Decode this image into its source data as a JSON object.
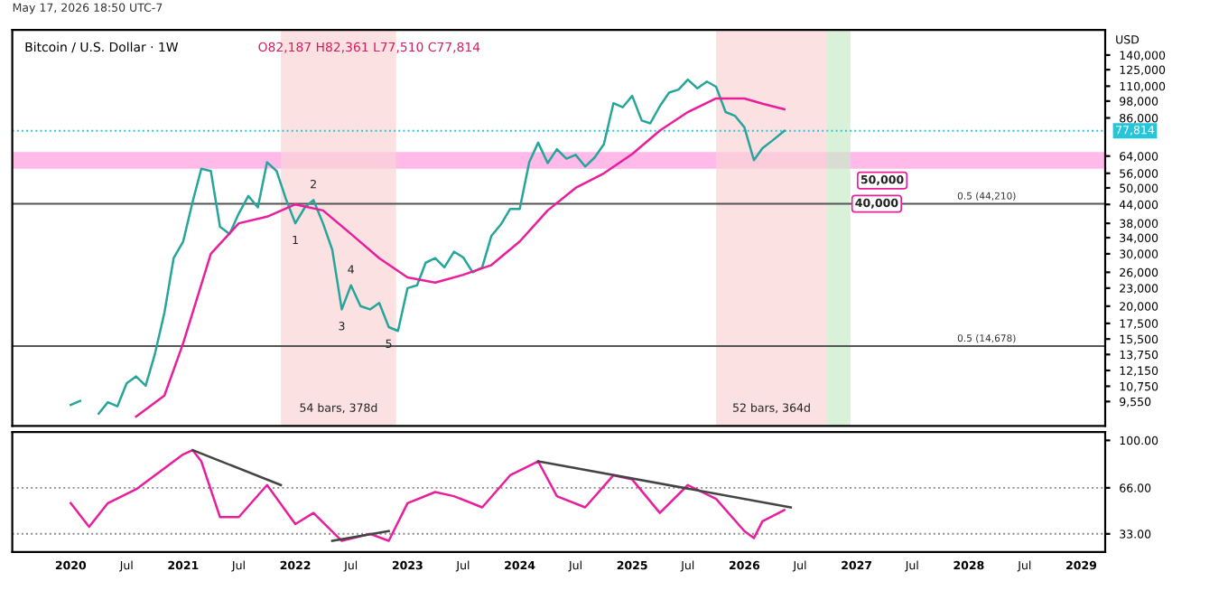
{
  "chart_data": [
    {
      "type": "line",
      "title": "Bitcoin / U.S. Dollar · 1W",
      "subtitle": "O82,187 H82,361 L77,510 C77,814",
      "log": "y",
      "tick_labels": "y",
      "marker": "none",
      "line_style": "solid",
      "ylabel": "USD",
      "xlim": [
        "2019-06-25",
        "2029-03-20"
      ],
      "ylim": [
        7900,
        170000
      ],
      "yticks": [
        {
          "value": 140000,
          "label": "140,000"
        },
        {
          "value": 125000,
          "label": "125,000"
        },
        {
          "value": 110000,
          "label": "110,000"
        },
        {
          "value": 98000,
          "label": "98,000"
        },
        {
          "value": 86000,
          "label": "86,000"
        },
        {
          "value": 64000,
          "label": "64,000"
        },
        {
          "value": 56000,
          "label": "56,000"
        },
        {
          "value": 50000,
          "label": "50,000"
        },
        {
          "value": 44000,
          "label": "44,000"
        },
        {
          "value": 38000,
          "label": "38,000"
        },
        {
          "value": 34000,
          "label": "34,000"
        },
        {
          "value": 30000,
          "label": "30,000"
        },
        {
          "value": 26000,
          "label": "26,000"
        },
        {
          "value": 23000,
          "label": "23,000"
        },
        {
          "value": 20000,
          "label": "20,000"
        },
        {
          "value": 17500,
          "label": "17,500"
        },
        {
          "value": 15500,
          "label": "15,500"
        },
        {
          "value": 13750,
          "label": "13,750"
        },
        {
          "value": 12150,
          "label": "12,150"
        },
        {
          "value": 10750,
          "label": "10,750"
        },
        {
          "value": 9550,
          "label": "9,550"
        }
      ],
      "series": [
        {
          "color": "#26a69a",
          "x": [
            "2020-01",
            "2020-02",
            "2020-03",
            "2020-04",
            "2020-05",
            "2020-06",
            "2020-07",
            "2020-08",
            "2020-09",
            "2020-10",
            "2020-11",
            "2020-12",
            "2021-01",
            "2021-02",
            "2021-03",
            "2021-04",
            "2021-05",
            "2021-06",
            "2021-07",
            "2021-08",
            "2021-09",
            "2021-10",
            "2021-11",
            "2021-12",
            "2022-01",
            "2022-02",
            "2022-03",
            "2022-04",
            "2022-05",
            "2022-06",
            "2022-07",
            "2022-08",
            "2022-09",
            "2022-10",
            "2022-11",
            "2022-12",
            "2023-01",
            "2023-02",
            "2023-03",
            "2023-04",
            "2023-05",
            "2023-06",
            "2023-07",
            "2023-08",
            "2023-09",
            "2023-10",
            "2023-11",
            "2023-12",
            "2024-01",
            "2024-02",
            "2024-03",
            "2024-04",
            "2024-05",
            "2024-06",
            "2024-07",
            "2024-08",
            "2024-09",
            "2024-10",
            "2024-11",
            "2024-12",
            "2025-01",
            "2025-02",
            "2025-03",
            "2025-04",
            "2025-05",
            "2025-06",
            "2025-07",
            "2025-08",
            "2025-09",
            "2025-10",
            "2025-11",
            "2025-12",
            "2026-01",
            "2026-02",
            "2026-03",
            "2026-04",
            "2026-05-11"
          ],
          "values": [
            9300,
            9600,
            null,
            8700,
            9500,
            9200,
            11000,
            11600,
            10800,
            13800,
            19000,
            29000,
            33000,
            45000,
            58000,
            57000,
            37000,
            35000,
            41000,
            47000,
            43000,
            61000,
            57000,
            46000,
            38000,
            43000,
            45500,
            38000,
            31000,
            19500,
            23500,
            20000,
            19500,
            20500,
            17000,
            16500,
            23000,
            23500,
            28000,
            29000,
            27000,
            30500,
            29200,
            26000,
            27000,
            34500,
            37700,
            42500,
            42500,
            61000,
            71000,
            60600,
            67500,
            62700,
            64600,
            59000,
            63300,
            70200,
            96400,
            93400,
            102000,
            84300,
            82500,
            94200,
            104600,
            107100,
            115700,
            108200,
            114000,
            109500,
            90000,
            87500,
            80000,
            62000,
            68000,
            72000,
            77814
          ]
        },
        {
          "color": "#e91e9c",
          "x": [
            "2020-08",
            "2020-11",
            "2021-01",
            "2021-04",
            "2021-07",
            "2021-10",
            "2022-01",
            "2022-04",
            "2022-07",
            "2022-10",
            "2023-01",
            "2023-04",
            "2023-07",
            "2023-10",
            "2024-01",
            "2024-04",
            "2024-07",
            "2024-10",
            "2025-01",
            "2025-04",
            "2025-07",
            "2025-10",
            "2026-01",
            "2026-03",
            "2026-05-11"
          ],
          "values": [
            8500,
            10000,
            15000,
            30000,
            38000,
            40000,
            44000,
            42000,
            35000,
            29000,
            25000,
            24000,
            25500,
            27500,
            33000,
            42000,
            50000,
            56000,
            65000,
            78000,
            90000,
            100000,
            100000,
            96000,
            92000
          ]
        }
      ],
      "bands": [
        {
          "axis": "y",
          "from": 58000,
          "to": 66000,
          "color": "#ff9de0"
        },
        {
          "axis": "x",
          "from": "2021-11-15",
          "to": "2022-11-25",
          "color": "#f9d4d4",
          "label": "54 bars, 378d"
        },
        {
          "axis": "x",
          "from": "2025-10-01",
          "to": "2026-09-27",
          "color": "#f9d4d4",
          "label": "52 bars, 364d"
        },
        {
          "axis": "x",
          "from": "2026-09-27",
          "to": "2026-12-12",
          "color": "#c8ebc8"
        }
      ],
      "ref_lines": [
        {
          "axis": "y",
          "value": 77814,
          "label": "77,814",
          "color": "#26c6da",
          "line_style": "dotted"
        },
        {
          "axis": "y",
          "value": 14678,
          "label": "0.5 (14,678)",
          "color": "#555555",
          "line_style": "solid"
        },
        {
          "axis": "y",
          "value": 44210,
          "label": "0.5 (44,210)",
          "color": "#555555",
          "line_style": "solid"
        }
      ],
      "annotations": [
        "May 17, 2026 18:50 UTC-7",
        {
          "text": "1",
          "x": "2022-01",
          "y": 38000
        },
        {
          "text": "2",
          "x": "2022-03",
          "y": 45500
        },
        {
          "text": "3",
          "x": "2022-06",
          "y": 19500
        },
        {
          "text": "4",
          "x": "2022-07",
          "y": 23500
        },
        {
          "text": "5",
          "x": "2022-11",
          "y": 17000
        },
        "50,000",
        {
          "text": "40,000",
          "x": "2026-11-24",
          "y": 44210
        }
      ]
    },
    {
      "type": "line",
      "marker": "none",
      "line_style": "solid",
      "xlim": [
        "2019-06-25",
        "2029-03-20"
      ],
      "ylim": [
        20,
        106
      ],
      "yticks": [
        {
          "value": 100,
          "label": "100.00"
        },
        {
          "value": 66,
          "label": "66.00"
        },
        {
          "value": 33,
          "label": "33.00"
        }
      ],
      "xticks": [
        {
          "value": "2020",
          "label": "2020"
        },
        {
          "value": "2020-07",
          "label": "Jul"
        },
        {
          "value": "2021",
          "label": "2021"
        },
        {
          "value": "2021-07",
          "label": "Jul"
        },
        {
          "value": "2022",
          "label": "2022"
        },
        {
          "value": "2022-07",
          "label": "Jul"
        },
        {
          "value": "2023",
          "label": "2023"
        },
        {
          "value": "2023-07",
          "label": "Jul"
        },
        {
          "value": "2024",
          "label": "2024"
        },
        {
          "value": "2024-07",
          "label": "Jul"
        },
        {
          "value": "2025",
          "label": "2025"
        },
        {
          "value": "2025-07",
          "label": "Jul"
        },
        {
          "value": "2026",
          "label": "2026"
        },
        {
          "value": "2026-07",
          "label": "Jul"
        },
        {
          "value": "2027",
          "label": "2027"
        },
        {
          "value": "2027-07",
          "label": "Jul"
        },
        {
          "value": "2028",
          "label": "2028"
        },
        {
          "value": "2028-07",
          "label": "Jul"
        },
        {
          "value": "2029",
          "label": "2029"
        }
      ],
      "ref_lines": [
        {
          "axis": "y",
          "value": 66,
          "color": "#888888",
          "line_style": "dotted"
        },
        {
          "axis": "y",
          "value": 33,
          "color": "#888888",
          "line_style": "dotted"
        }
      ],
      "series": [
        {
          "color": "#e91e9c",
          "x": [
            "2020-01",
            "2020-03",
            "2020-05",
            "2020-08",
            "2020-11",
            "2021-01",
            "2021-02",
            "2021-03",
            "2021-05",
            "2021-07",
            "2021-10",
            "2022-01",
            "2022-03",
            "2022-06",
            "2022-09",
            "2022-11",
            "2023-01",
            "2023-04",
            "2023-06",
            "2023-09",
            "2023-12",
            "2024-03",
            "2024-05",
            "2024-08",
            "2024-11",
            "2025-01",
            "2025-04",
            "2025-07",
            "2025-10",
            "2026-01",
            "2026-02",
            "2026-03",
            "2026-05-11"
          ],
          "values": [
            55,
            38,
            55,
            65,
            80,
            90,
            93,
            85,
            45,
            45,
            68,
            40,
            48,
            28,
            33,
            28,
            55,
            63,
            60,
            52,
            75,
            85,
            60,
            52,
            75,
            72,
            48,
            68,
            58,
            35,
            30,
            42,
            50
          ]
        },
        {
          "color": "#444444",
          "x": [
            "2021-02",
            "2021-11-15"
          ],
          "values": [
            93,
            68
          ]
        },
        {
          "color": "#444444",
          "x": [
            "2022-05",
            "2022-11"
          ],
          "values": [
            28,
            35
          ]
        },
        {
          "color": "#444444",
          "x": [
            "2024-03",
            "2026-06"
          ],
          "values": [
            85,
            52
          ]
        }
      ]
    }
  ]
}
